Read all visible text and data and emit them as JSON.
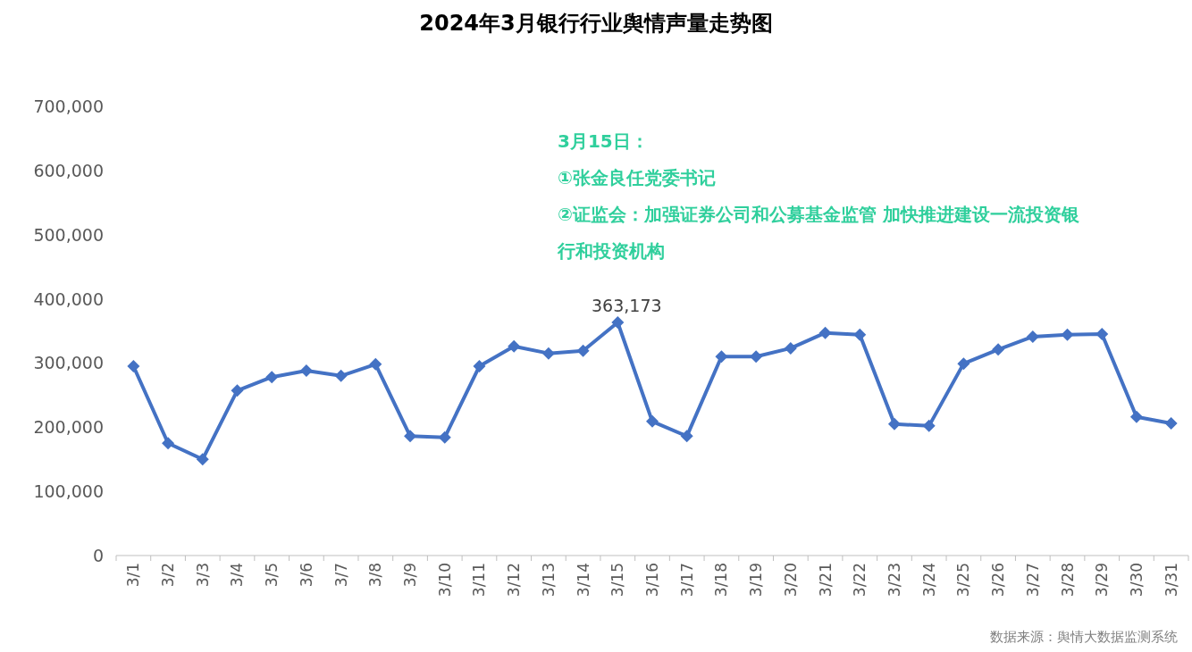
{
  "chart_data": {
    "type": "line",
    "title": "2024年3月银行行业舆情声量走势图",
    "categories": [
      "3/1",
      "3/2",
      "3/3",
      "3/4",
      "3/5",
      "3/6",
      "3/7",
      "3/8",
      "3/9",
      "3/10",
      "3/11",
      "3/12",
      "3/13",
      "3/14",
      "3/15",
      "3/16",
      "3/17",
      "3/18",
      "3/19",
      "3/20",
      "3/21",
      "3/22",
      "3/23",
      "3/24",
      "3/25",
      "3/26",
      "3/27",
      "3/28",
      "3/29",
      "3/30",
      "3/31"
    ],
    "series": [
      {
        "color": "#4472c4",
        "values": [
          295000,
          175000,
          150000,
          257000,
          278000,
          288000,
          280000,
          298000,
          186000,
          184000,
          295000,
          326000,
          315000,
          319000,
          363173,
          209000,
          186000,
          310000,
          310000,
          323000,
          347000,
          344000,
          205000,
          202000,
          299000,
          321000,
          341000,
          344000,
          345000,
          216000,
          206000
        ],
        "value_labels": [
          null,
          null,
          null,
          null,
          null,
          null,
          null,
          null,
          null,
          null,
          null,
          null,
          null,
          null,
          "363,173",
          null,
          null,
          null,
          null,
          null,
          null,
          null,
          null,
          null,
          null,
          null,
          null,
          null,
          null,
          null,
          null
        ]
      }
    ],
    "ylim": [
      0,
      700000
    ],
    "yticks": [
      0,
      {
        "value": 100000,
        "label": "100,000"
      },
      {
        "value": 200000,
        "label": "200,000"
      },
      {
        "value": 300000,
        "label": "300,000"
      },
      {
        "value": 400000,
        "label": "400,000"
      },
      {
        "value": 500000,
        "label": "500,000"
      },
      {
        "value": 600000,
        "label": "600,000"
      },
      {
        "value": 700000,
        "label": "700,000"
      }
    ],
    "marker": "diamond",
    "line_style": "solid",
    "grid": false,
    "annotations": [
      "3月15日：",
      "①张金良任党委书记",
      "②证监会：加强证券公司和公募基金监管 加快推进建设一流投资银行和投资机构",
      "数据来源：舆情大数据监测系统"
    ]
  }
}
